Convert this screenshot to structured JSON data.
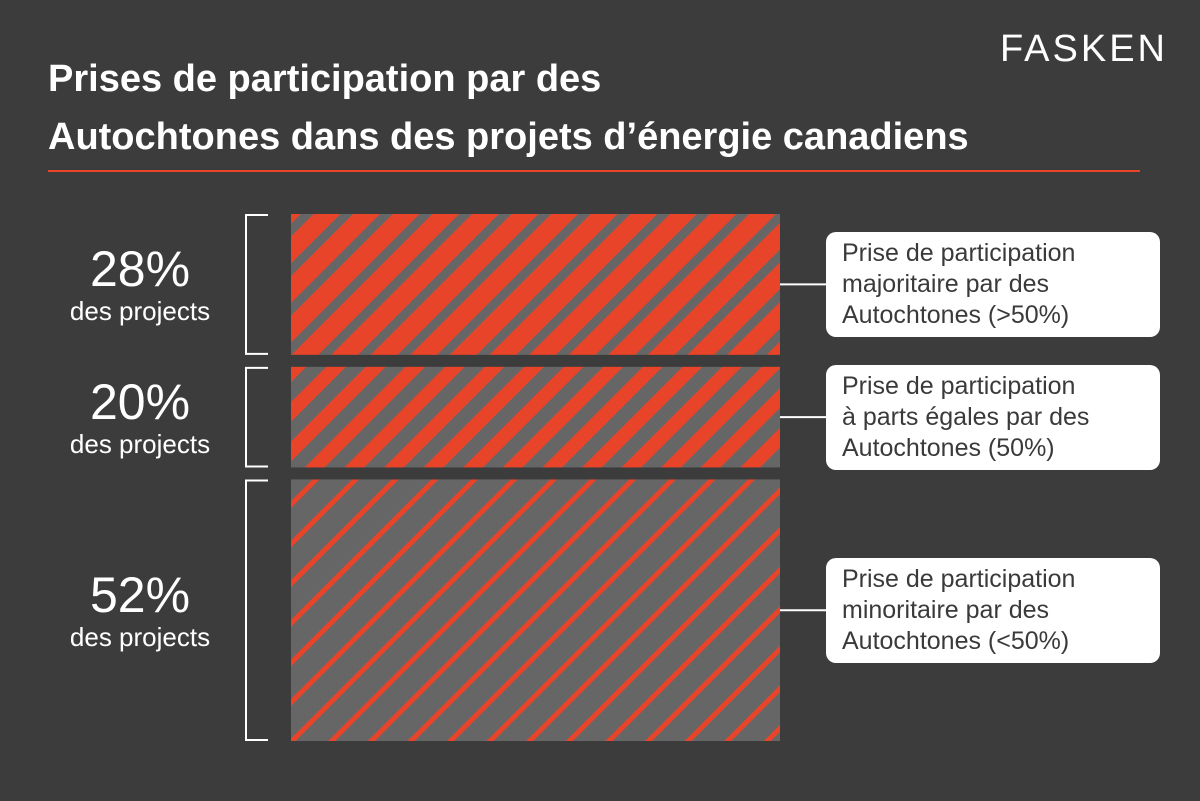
{
  "title": [
    "Prises de participation par des",
    "Autochtones dans des projets d’énergie canadiens"
  ],
  "brand": "FASKEN",
  "colors": {
    "background": "#3c3c3c",
    "accent": "#e8442a",
    "gray": "#666666",
    "label_bg": "#ffffff"
  },
  "chart_data": {
    "type": "bar",
    "orientation": "stacked-vertical",
    "unit": "%",
    "segments": [
      {
        "value": 28,
        "pct_label": "28%",
        "sub_label": "des projects",
        "label": [
          "Prise de participation",
          "majoritaire par des",
          "Autochtones (>50%)"
        ]
      },
      {
        "value": 20,
        "pct_label": "20%",
        "sub_label": "des projects",
        "label": [
          "Prise de participation",
          "à parts égales par des",
          "Autochtones (50%)"
        ]
      },
      {
        "value": 52,
        "pct_label": "52%",
        "sub_label": "des projects",
        "label": [
          "Prise de participation",
          "minoritaire par des",
          "Autochtones (<50%)"
        ]
      }
    ]
  }
}
